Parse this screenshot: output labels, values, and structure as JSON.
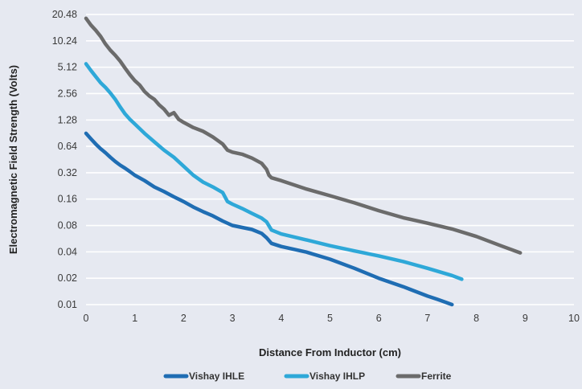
{
  "chart_data": {
    "type": "line",
    "title": "",
    "xlabel": "Distance From Inductor (cm)",
    "ylabel": "Electromagnetic Field Strength (Volts)",
    "xlim": [
      0,
      10
    ],
    "x_ticks": [
      "0",
      "1",
      "2",
      "3",
      "4",
      "5",
      "6",
      "7",
      "8",
      "9",
      "10"
    ],
    "y_scale": "log2",
    "ylim": [
      0.01,
      20.48
    ],
    "y_ticks": [
      "0.01",
      "0.02",
      "0.04",
      "0.08",
      "0.16",
      "0.32",
      "0.64",
      "1.28",
      "2.56",
      "5.12",
      "10.24",
      "20.48"
    ],
    "grid": "horizontal",
    "legend_position": "bottom",
    "series": [
      {
        "name": "Vishay IHLE",
        "color": "#1f6db3",
        "points": [
          [
            0,
            0.9
          ],
          [
            0.1,
            0.78
          ],
          [
            0.2,
            0.68
          ],
          [
            0.3,
            0.6
          ],
          [
            0.4,
            0.54
          ],
          [
            0.5,
            0.48
          ],
          [
            0.6,
            0.43
          ],
          [
            0.7,
            0.39
          ],
          [
            0.8,
            0.36
          ],
          [
            0.9,
            0.33
          ],
          [
            1.0,
            0.3
          ],
          [
            1.2,
            0.26
          ],
          [
            1.4,
            0.22
          ],
          [
            1.6,
            0.195
          ],
          [
            1.8,
            0.17
          ],
          [
            2.0,
            0.15
          ],
          [
            2.2,
            0.13
          ],
          [
            2.4,
            0.115
          ],
          [
            2.6,
            0.103
          ],
          [
            2.8,
            0.09
          ],
          [
            3.0,
            0.08
          ],
          [
            3.2,
            0.076
          ],
          [
            3.4,
            0.072
          ],
          [
            3.6,
            0.065
          ],
          [
            3.7,
            0.058
          ],
          [
            3.8,
            0.05
          ],
          [
            4.0,
            0.046
          ],
          [
            4.5,
            0.04
          ],
          [
            5.0,
            0.033
          ],
          [
            5.5,
            0.026
          ],
          [
            6.0,
            0.02
          ],
          [
            6.5,
            0.016
          ],
          [
            7.0,
            0.0125
          ],
          [
            7.2,
            0.0115
          ],
          [
            7.4,
            0.0105
          ],
          [
            7.5,
            0.01
          ]
        ]
      },
      {
        "name": "Vishay IHLP",
        "color": "#2ea8d8",
        "points": [
          [
            0,
            5.6
          ],
          [
            0.1,
            4.7
          ],
          [
            0.2,
            4.0
          ],
          [
            0.3,
            3.4
          ],
          [
            0.4,
            3.0
          ],
          [
            0.5,
            2.6
          ],
          [
            0.6,
            2.2
          ],
          [
            0.7,
            1.8
          ],
          [
            0.8,
            1.5
          ],
          [
            0.9,
            1.3
          ],
          [
            1.0,
            1.15
          ],
          [
            1.2,
            0.9
          ],
          [
            1.4,
            0.72
          ],
          [
            1.6,
            0.58
          ],
          [
            1.8,
            0.48
          ],
          [
            2.0,
            0.38
          ],
          [
            2.2,
            0.3
          ],
          [
            2.4,
            0.25
          ],
          [
            2.6,
            0.22
          ],
          [
            2.8,
            0.19
          ],
          [
            2.9,
            0.15
          ],
          [
            3.0,
            0.14
          ],
          [
            3.2,
            0.125
          ],
          [
            3.4,
            0.11
          ],
          [
            3.6,
            0.097
          ],
          [
            3.7,
            0.088
          ],
          [
            3.8,
            0.071
          ],
          [
            4.0,
            0.064
          ],
          [
            4.5,
            0.055
          ],
          [
            5.0,
            0.047
          ],
          [
            5.5,
            0.041
          ],
          [
            6.0,
            0.036
          ],
          [
            6.5,
            0.031
          ],
          [
            7.0,
            0.026
          ],
          [
            7.5,
            0.0215
          ],
          [
            7.7,
            0.0195
          ]
        ]
      },
      {
        "name": "Ferrite",
        "color": "#6b6b6b",
        "points": [
          [
            0,
            18.5
          ],
          [
            0.1,
            15.5
          ],
          [
            0.2,
            13.5
          ],
          [
            0.3,
            11.5
          ],
          [
            0.4,
            9.4
          ],
          [
            0.5,
            8.0
          ],
          [
            0.6,
            7.0
          ],
          [
            0.7,
            6.0
          ],
          [
            0.8,
            5.0
          ],
          [
            0.9,
            4.2
          ],
          [
            1.0,
            3.6
          ],
          [
            1.1,
            3.2
          ],
          [
            1.2,
            2.7
          ],
          [
            1.3,
            2.4
          ],
          [
            1.4,
            2.2
          ],
          [
            1.5,
            1.9
          ],
          [
            1.6,
            1.7
          ],
          [
            1.7,
            1.45
          ],
          [
            1.8,
            1.55
          ],
          [
            1.9,
            1.3
          ],
          [
            2.0,
            1.2
          ],
          [
            2.2,
            1.05
          ],
          [
            2.4,
            0.95
          ],
          [
            2.6,
            0.82
          ],
          [
            2.8,
            0.68
          ],
          [
            2.9,
            0.58
          ],
          [
            3.0,
            0.55
          ],
          [
            3.2,
            0.52
          ],
          [
            3.4,
            0.47
          ],
          [
            3.6,
            0.41
          ],
          [
            3.7,
            0.35
          ],
          [
            3.75,
            0.3
          ],
          [
            3.8,
            0.28
          ],
          [
            4.0,
            0.26
          ],
          [
            4.5,
            0.21
          ],
          [
            5.0,
            0.175
          ],
          [
            5.5,
            0.145
          ],
          [
            6.0,
            0.118
          ],
          [
            6.5,
            0.098
          ],
          [
            7.0,
            0.085
          ],
          [
            7.5,
            0.073
          ],
          [
            8.0,
            0.06
          ],
          [
            8.5,
            0.047
          ],
          [
            8.9,
            0.039
          ]
        ]
      }
    ]
  }
}
